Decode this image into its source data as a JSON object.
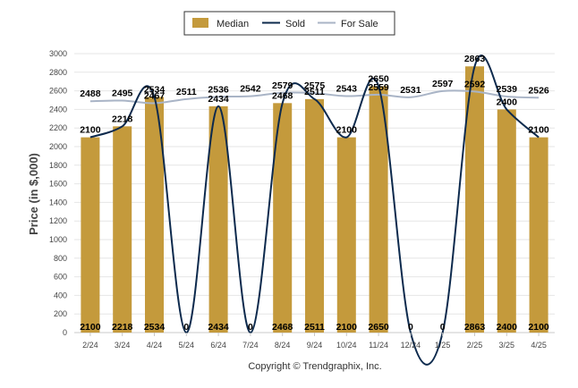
{
  "chart_data": {
    "type": "bar",
    "categories": [
      "2/24",
      "3/24",
      "4/24",
      "5/24",
      "6/24",
      "7/24",
      "8/24",
      "9/24",
      "10/24",
      "11/24",
      "12/24",
      "1/25",
      "2/25",
      "3/25",
      "4/25"
    ],
    "series": [
      {
        "name": "Median",
        "kind": "bar",
        "color": "#c49a3c",
        "values": [
          2100,
          2218,
          2534,
          0,
          2434,
          0,
          2468,
          2511,
          2100,
          2650,
          0,
          0,
          2863,
          2400,
          2100
        ],
        "labels": [
          "2100",
          "2218",
          "2534",
          "",
          "2434",
          "",
          "2468",
          "2511",
          "2100",
          "2650",
          "",
          "",
          "2863",
          "2400",
          "2100"
        ]
      },
      {
        "name": "Sold",
        "kind": "line",
        "color": "#0d2a4d",
        "values": [
          2100,
          2218,
          2534,
          0,
          2434,
          0,
          2468,
          2511,
          2100,
          2650,
          0,
          0,
          2863,
          2400,
          2100
        ],
        "labels": [
          "2100",
          "2218",
          "2534",
          "0",
          "2434",
          "0",
          "2468",
          "2511",
          "2100",
          "2650",
          "0",
          "0",
          "2863",
          "2400",
          "2100"
        ]
      },
      {
        "name": "For Sale",
        "kind": "line",
        "color": "#a9b4c6",
        "values": [
          2488,
          2495,
          2467,
          2511,
          2536,
          2542,
          2579,
          2575,
          2543,
          2559,
          2531,
          2597,
          2592,
          2539,
          2526
        ],
        "labels": [
          "2488",
          "2495",
          "2467",
          "2511",
          "2536",
          "2542",
          "2579",
          "2575",
          "2543",
          "2559",
          "2531",
          "2597",
          "2592",
          "2539",
          "2526"
        ]
      }
    ],
    "ylabel": "Price (in $,000)",
    "xlabel": "",
    "ylim": [
      0,
      3000
    ],
    "yticks": [
      0,
      200,
      400,
      600,
      800,
      1000,
      1200,
      1400,
      1600,
      1800,
      2000,
      2200,
      2400,
      2600,
      2800,
      3000
    ],
    "grid": true,
    "legend_position": "top-center"
  },
  "footer": {
    "copyright": "Copyright © Trendgraphix, Inc."
  }
}
